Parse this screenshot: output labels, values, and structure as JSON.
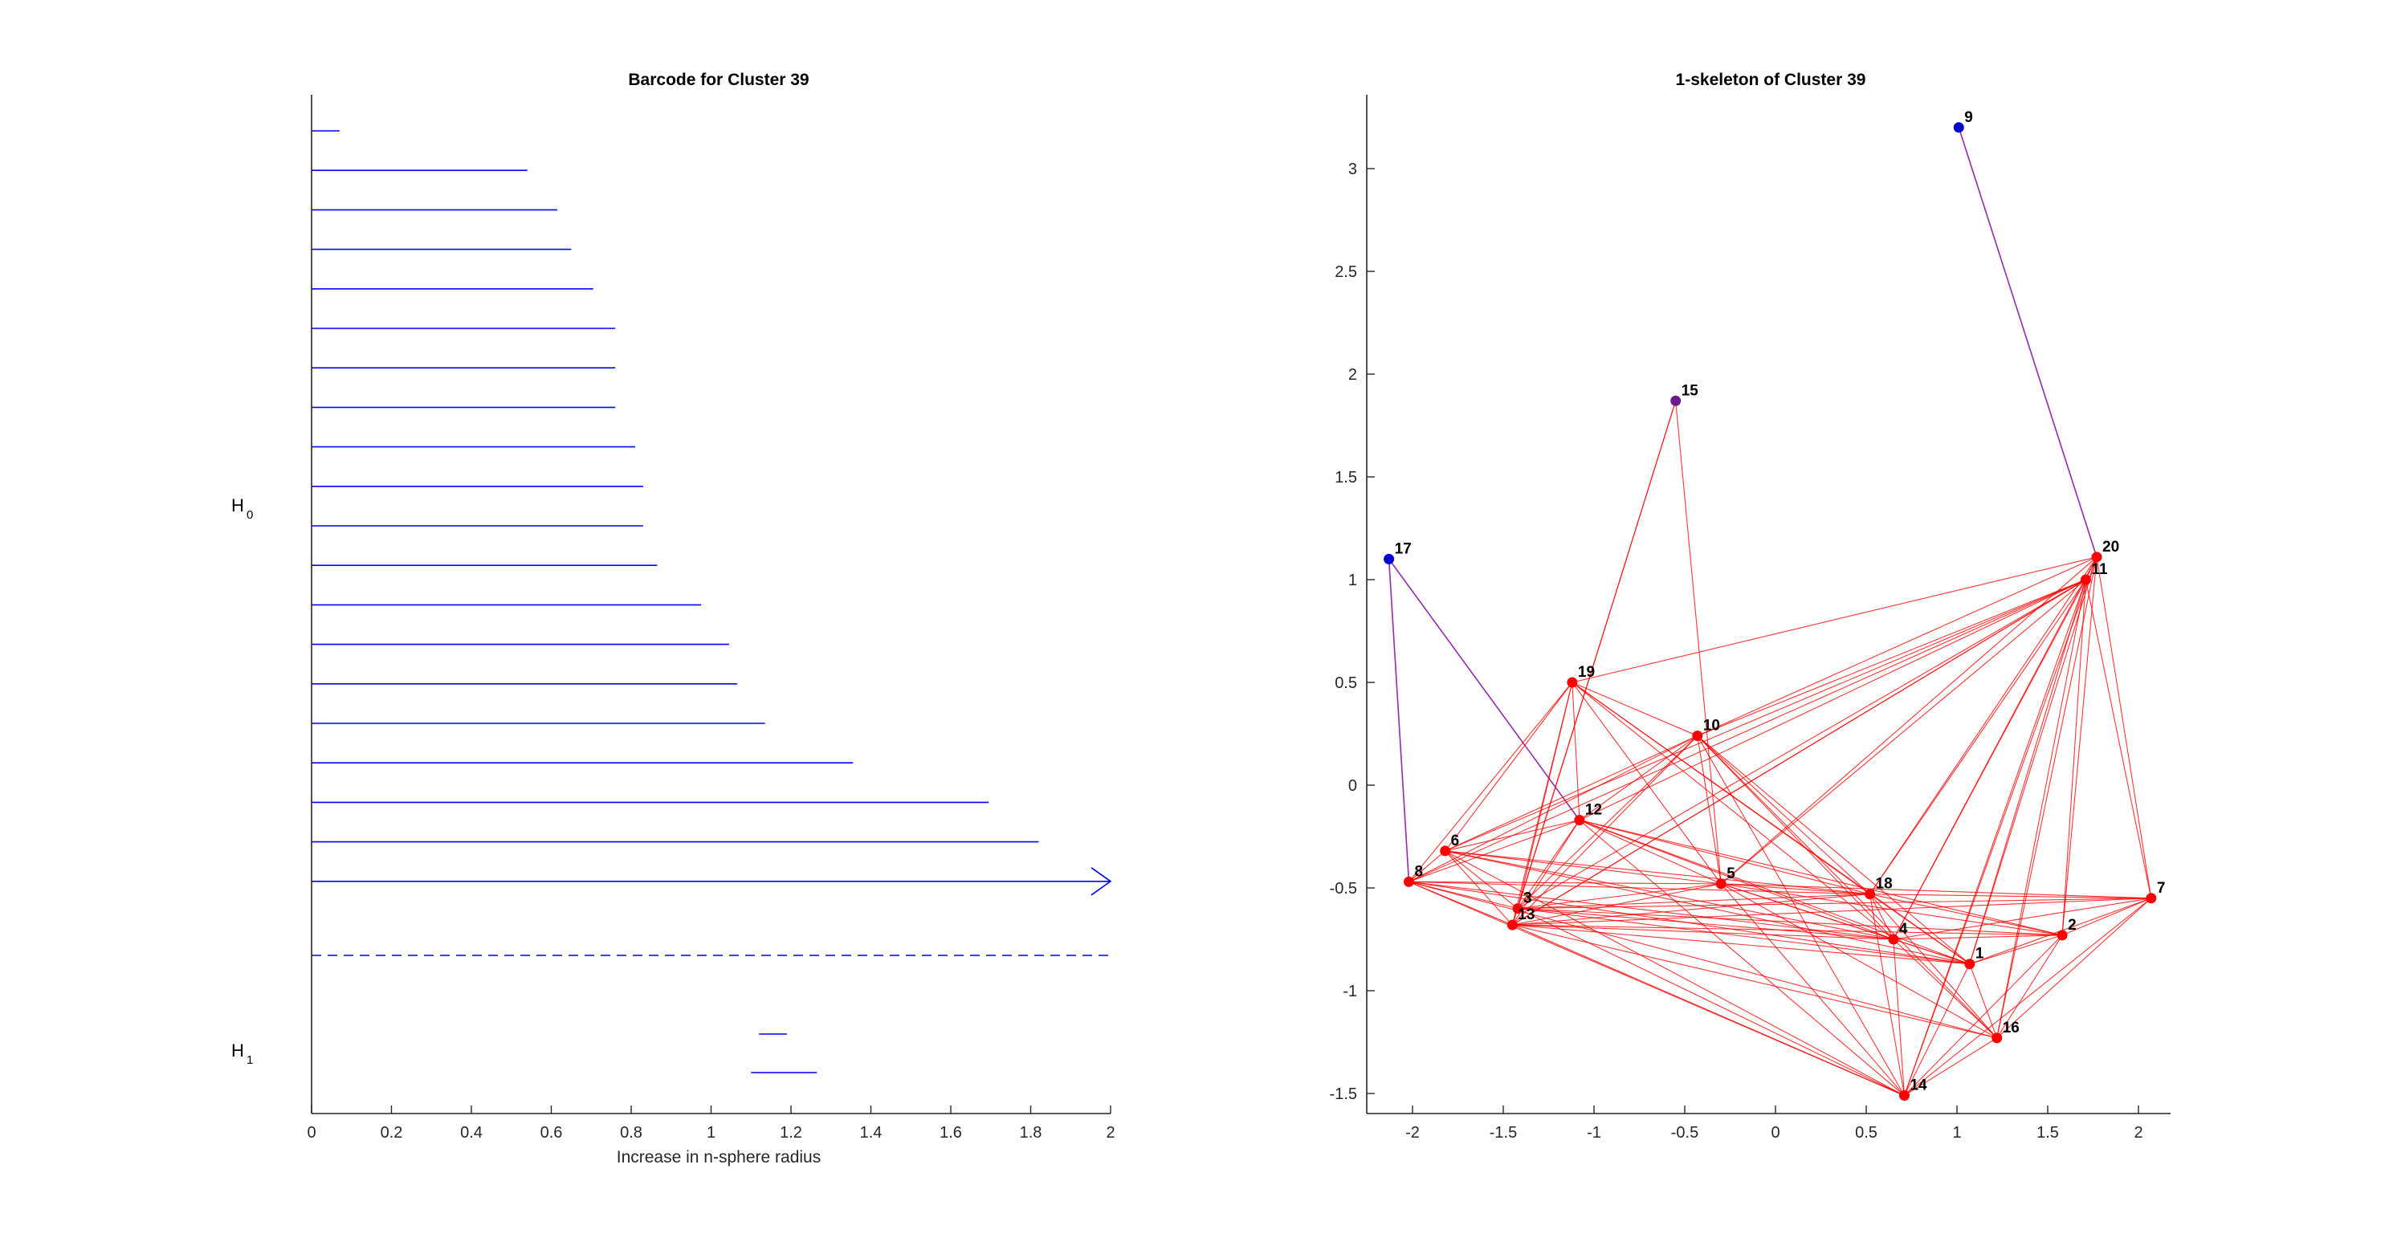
{
  "chart_data": [
    {
      "type": "barcode",
      "title": "Barcode for Cluster 39",
      "xlabel": "Increase in n-sphere radius",
      "xlim": [
        0,
        2
      ],
      "xticks": [
        "0",
        "0.2",
        "0.4",
        "0.6",
        "0.8",
        "1",
        "1.2",
        "1.4",
        "1.6",
        "1.8",
        "2"
      ],
      "colors": {
        "bars": "#0000ff",
        "axis": "#262626",
        "text": "#000000"
      },
      "groups": [
        {
          "label": "H",
          "subscript": "0",
          "bars": [
            {
              "start": 0,
              "end": 0.07
            },
            {
              "start": 0,
              "end": 0.54
            },
            {
              "start": 0,
              "end": 0.615
            },
            {
              "start": 0,
              "end": 0.65
            },
            {
              "start": 0,
              "end": 0.705
            },
            {
              "start": 0,
              "end": 0.76
            },
            {
              "start": 0,
              "end": 0.76
            },
            {
              "start": 0,
              "end": 0.76
            },
            {
              "start": 0,
              "end": 0.81
            },
            {
              "start": 0,
              "end": 0.83
            },
            {
              "start": 0,
              "end": 0.83
            },
            {
              "start": 0,
              "end": 0.865
            },
            {
              "start": 0,
              "end": 0.975
            },
            {
              "start": 0,
              "end": 1.045
            },
            {
              "start": 0,
              "end": 1.065
            },
            {
              "start": 0,
              "end": 1.135
            },
            {
              "start": 0,
              "end": 1.355
            },
            {
              "start": 0,
              "end": 1.695
            },
            {
              "start": 0,
              "end": 1.82
            },
            {
              "start": 0,
              "end": 2.0,
              "infinite": true
            }
          ]
        },
        {
          "label": "H",
          "subscript": "1",
          "bars": [
            {
              "start": 1.12,
              "end": 1.19
            },
            {
              "start": 1.1,
              "end": 1.265
            }
          ]
        }
      ]
    },
    {
      "type": "graph",
      "title": "1-skeleton of Cluster 39",
      "xlim": [
        -2.3,
        2.2
      ],
      "ylim": [
        -1.6,
        3.35
      ],
      "xticks": [
        "-2",
        "-1.5",
        "-1",
        "-0.5",
        "0",
        "0.5",
        "1",
        "1.5",
        "2"
      ],
      "xtick_values": [
        -2,
        -1.5,
        -1,
        -0.5,
        0,
        0.5,
        1,
        1.5,
        2
      ],
      "yticks": [
        "-1.5",
        "-1",
        "-0.5",
        "0",
        "0.5",
        "1",
        "1.5",
        "2",
        "2.5",
        "3"
      ],
      "ytick_values": [
        -1.5,
        -1,
        -0.5,
        0,
        0.5,
        1,
        1.5,
        2,
        2.5,
        3
      ],
      "colors": {
        "edge": "#ff0000",
        "edge_purple": "#8b1fa8",
        "node_red": "#ff0000",
        "node_blue": "#0000d0",
        "node_purple": "#6a1a8a"
      },
      "nodes": [
        {
          "id": "1",
          "x": 1.07,
          "y": -0.87,
          "color": "red"
        },
        {
          "id": "2",
          "x": 1.58,
          "y": -0.73,
          "color": "red"
        },
        {
          "id": "3",
          "x": -1.42,
          "y": -0.6,
          "color": "red"
        },
        {
          "id": "4",
          "x": 0.65,
          "y": -0.75,
          "color": "red"
        },
        {
          "id": "5",
          "x": -0.3,
          "y": -0.48,
          "color": "red"
        },
        {
          "id": "6",
          "x": -1.82,
          "y": -0.32,
          "color": "red"
        },
        {
          "id": "7",
          "x": 2.07,
          "y": -0.55,
          "color": "red"
        },
        {
          "id": "8",
          "x": -2.02,
          "y": -0.47,
          "color": "red"
        },
        {
          "id": "9",
          "x": 1.01,
          "y": 3.2,
          "color": "blue"
        },
        {
          "id": "10",
          "x": -0.43,
          "y": 0.24,
          "color": "red"
        },
        {
          "id": "11",
          "x": 1.71,
          "y": 1.0,
          "color": "red"
        },
        {
          "id": "12",
          "x": -1.08,
          "y": -0.17,
          "color": "red"
        },
        {
          "id": "13",
          "x": -1.45,
          "y": -0.68,
          "color": "red"
        },
        {
          "id": "14",
          "x": 0.71,
          "y": -1.51,
          "color": "red"
        },
        {
          "id": "15",
          "x": -0.55,
          "y": 1.87,
          "color": "purple"
        },
        {
          "id": "16",
          "x": 1.22,
          "y": -1.23,
          "color": "red"
        },
        {
          "id": "17",
          "x": -2.13,
          "y": 1.1,
          "color": "blue"
        },
        {
          "id": "18",
          "x": 0.52,
          "y": -0.53,
          "color": "red"
        },
        {
          "id": "19",
          "x": -1.12,
          "y": 0.5,
          "color": "red"
        },
        {
          "id": "20",
          "x": 1.77,
          "y": 1.11,
          "color": "red"
        }
      ],
      "edges": [
        [
          "9",
          "20",
          "purple"
        ],
        [
          "17",
          "8",
          "purple"
        ],
        [
          "17",
          "12",
          "purple"
        ],
        [
          "15",
          "13"
        ],
        [
          "15",
          "5"
        ],
        [
          "15",
          "3"
        ],
        [
          "19",
          "20"
        ],
        [
          "19",
          "10"
        ],
        [
          "19",
          "12"
        ],
        [
          "19",
          "3"
        ],
        [
          "19",
          "13"
        ],
        [
          "19",
          "6"
        ],
        [
          "19",
          "8"
        ],
        [
          "19",
          "5"
        ],
        [
          "19",
          "18"
        ],
        [
          "19",
          "4"
        ],
        [
          "19",
          "1"
        ],
        [
          "10",
          "11"
        ],
        [
          "10",
          "20"
        ],
        [
          "10",
          "12"
        ],
        [
          "10",
          "3"
        ],
        [
          "10",
          "13"
        ],
        [
          "10",
          "8"
        ],
        [
          "10",
          "5"
        ],
        [
          "10",
          "18"
        ],
        [
          "10",
          "4"
        ],
        [
          "10",
          "14"
        ],
        [
          "10",
          "16"
        ],
        [
          "10",
          "1"
        ],
        [
          "10",
          "6"
        ],
        [
          "12",
          "5"
        ],
        [
          "12",
          "18"
        ],
        [
          "12",
          "4"
        ],
        [
          "12",
          "1"
        ],
        [
          "12",
          "14"
        ],
        [
          "12",
          "6"
        ],
        [
          "12",
          "8"
        ],
        [
          "12",
          "3"
        ],
        [
          "12",
          "13"
        ],
        [
          "12",
          "2"
        ],
        [
          "6",
          "8"
        ],
        [
          "6",
          "3"
        ],
        [
          "6",
          "13"
        ],
        [
          "6",
          "5"
        ],
        [
          "6",
          "18"
        ],
        [
          "6",
          "4"
        ],
        [
          "6",
          "1"
        ],
        [
          "6",
          "14"
        ],
        [
          "8",
          "3"
        ],
        [
          "8",
          "13"
        ],
        [
          "8",
          "5"
        ],
        [
          "8",
          "18"
        ],
        [
          "8",
          "4"
        ],
        [
          "8",
          "14"
        ],
        [
          "8",
          "1"
        ],
        [
          "8",
          "16"
        ],
        [
          "3",
          "13"
        ],
        [
          "3",
          "5"
        ],
        [
          "3",
          "18"
        ],
        [
          "3",
          "4"
        ],
        [
          "3",
          "1"
        ],
        [
          "3",
          "2"
        ],
        [
          "3",
          "7"
        ],
        [
          "3",
          "14"
        ],
        [
          "3",
          "11"
        ],
        [
          "13",
          "5"
        ],
        [
          "13",
          "18"
        ],
        [
          "13",
          "4"
        ],
        [
          "13",
          "1"
        ],
        [
          "13",
          "14"
        ],
        [
          "13",
          "2"
        ],
        [
          "13",
          "16"
        ],
        [
          "13",
          "7"
        ],
        [
          "13",
          "11"
        ],
        [
          "5",
          "18"
        ],
        [
          "5",
          "4"
        ],
        [
          "5",
          "1"
        ],
        [
          "5",
          "2"
        ],
        [
          "5",
          "14"
        ],
        [
          "5",
          "16"
        ],
        [
          "5",
          "11"
        ],
        [
          "5",
          "20"
        ],
        [
          "5",
          "7"
        ],
        [
          "18",
          "4"
        ],
        [
          "18",
          "1"
        ],
        [
          "18",
          "2"
        ],
        [
          "18",
          "7"
        ],
        [
          "18",
          "14"
        ],
        [
          "18",
          "16"
        ],
        [
          "18",
          "11"
        ],
        [
          "18",
          "20"
        ],
        [
          "4",
          "1"
        ],
        [
          "4",
          "2"
        ],
        [
          "4",
          "7"
        ],
        [
          "4",
          "14"
        ],
        [
          "4",
          "16"
        ],
        [
          "4",
          "11"
        ],
        [
          "4",
          "20"
        ],
        [
          "1",
          "2"
        ],
        [
          "1",
          "7"
        ],
        [
          "1",
          "14"
        ],
        [
          "1",
          "16"
        ],
        [
          "1",
          "11"
        ],
        [
          "1",
          "20"
        ],
        [
          "2",
          "7"
        ],
        [
          "2",
          "14"
        ],
        [
          "2",
          "16"
        ],
        [
          "2",
          "11"
        ],
        [
          "2",
          "20"
        ],
        [
          "7",
          "16"
        ],
        [
          "7",
          "14"
        ],
        [
          "7",
          "11"
        ],
        [
          "7",
          "20"
        ],
        [
          "14",
          "16"
        ],
        [
          "14",
          "11"
        ],
        [
          "14",
          "20"
        ],
        [
          "16",
          "11"
        ],
        [
          "16",
          "20"
        ],
        [
          "11",
          "20"
        ],
        [
          "11",
          "12"
        ],
        [
          "11",
          "13"
        ],
        [
          "11",
          "8"
        ],
        [
          "11",
          "6"
        ]
      ]
    }
  ]
}
